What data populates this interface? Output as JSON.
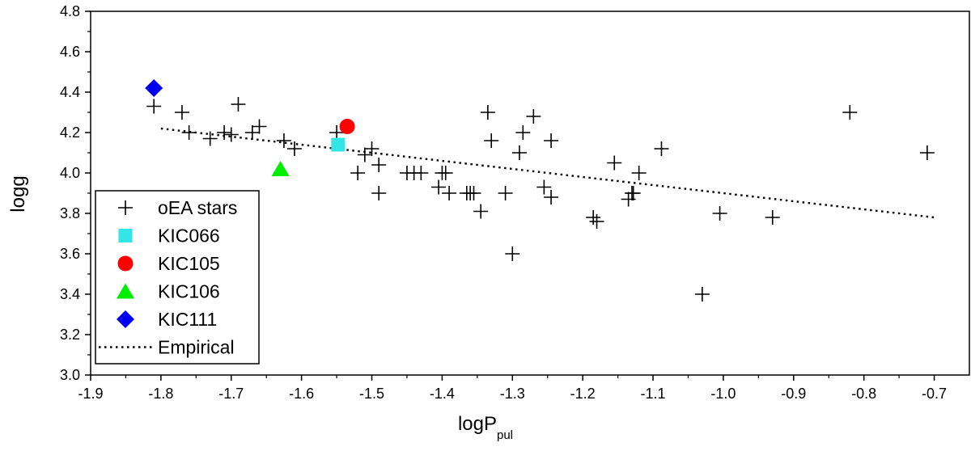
{
  "chart_data": {
    "type": "scatter",
    "xlabel": "logP",
    "xlabel_sub": "pul",
    "ylabel": "logg",
    "xlim": [
      -1.9,
      -0.65
    ],
    "ylim": [
      3.0,
      4.8
    ],
    "x_ticks": [
      "-1.9",
      "-1.8",
      "-1.7",
      "-1.6",
      "-1.5",
      "-1.4",
      "-1.3",
      "-1.2",
      "-1.1",
      "-1.0",
      "-0.9",
      "-0.8",
      "-0.7"
    ],
    "y_ticks": [
      "3.0",
      "3.2",
      "3.4",
      "3.6",
      "3.8",
      "4.0",
      "4.2",
      "4.4",
      "4.6",
      "4.8"
    ],
    "legend_position": "bottom-left",
    "series": [
      {
        "name": "oEA stars",
        "marker": "plus",
        "color": "#000000",
        "points": [
          [
            -1.81,
            4.33
          ],
          [
            -1.77,
            4.3
          ],
          [
            -1.76,
            4.2
          ],
          [
            -1.73,
            4.17
          ],
          [
            -1.71,
            4.2
          ],
          [
            -1.7,
            4.19
          ],
          [
            -1.69,
            4.34
          ],
          [
            -1.67,
            4.2
          ],
          [
            -1.66,
            4.23
          ],
          [
            -1.625,
            4.16
          ],
          [
            -1.61,
            4.12
          ],
          [
            -1.55,
            4.2
          ],
          [
            -1.52,
            4.0
          ],
          [
            -1.51,
            4.09
          ],
          [
            -1.5,
            4.12
          ],
          [
            -1.49,
            4.04
          ],
          [
            -1.49,
            3.9
          ],
          [
            -1.45,
            4.0
          ],
          [
            -1.44,
            4.0
          ],
          [
            -1.43,
            4.0
          ],
          [
            -1.405,
            3.93
          ],
          [
            -1.4,
            4.0
          ],
          [
            -1.395,
            4.0
          ],
          [
            -1.39,
            3.9
          ],
          [
            -1.365,
            3.9
          ],
          [
            -1.36,
            3.9
          ],
          [
            -1.355,
            3.9
          ],
          [
            -1.345,
            3.81
          ],
          [
            -1.335,
            4.3
          ],
          [
            -1.33,
            4.16
          ],
          [
            -1.31,
            3.9
          ],
          [
            -1.3,
            3.6
          ],
          [
            -1.29,
            4.1
          ],
          [
            -1.285,
            4.2
          ],
          [
            -1.27,
            4.28
          ],
          [
            -1.255,
            3.93
          ],
          [
            -1.245,
            3.88
          ],
          [
            -1.245,
            4.16
          ],
          [
            -1.185,
            3.78
          ],
          [
            -1.18,
            3.76
          ],
          [
            -1.155,
            4.05
          ],
          [
            -1.135,
            3.87
          ],
          [
            -1.13,
            3.9
          ],
          [
            -1.128,
            3.9
          ],
          [
            -1.12,
            4.0
          ],
          [
            -1.088,
            4.12
          ],
          [
            -1.03,
            3.4
          ],
          [
            -1.005,
            3.8
          ],
          [
            -0.93,
            3.78
          ],
          [
            -0.82,
            4.3
          ],
          [
            -0.71,
            4.1
          ]
        ]
      },
      {
        "name": "KIC066",
        "marker": "square",
        "color": "#33e5e5",
        "points": [
          [
            -1.548,
            4.14
          ]
        ]
      },
      {
        "name": "KIC105",
        "marker": "circle",
        "color": "#ff0000",
        "points": [
          [
            -1.535,
            4.23
          ]
        ]
      },
      {
        "name": "KIC106",
        "marker": "triangle",
        "color": "#00ee00",
        "points": [
          [
            -1.63,
            4.02
          ]
        ]
      },
      {
        "name": "KIC111",
        "marker": "diamond",
        "color": "#0000ee",
        "points": [
          [
            -1.81,
            4.42
          ]
        ]
      },
      {
        "name": "Empirical",
        "marker": "dotted-line",
        "color": "#000000",
        "points": [
          [
            -1.8,
            4.22
          ],
          [
            -0.7,
            3.78
          ]
        ]
      }
    ]
  }
}
